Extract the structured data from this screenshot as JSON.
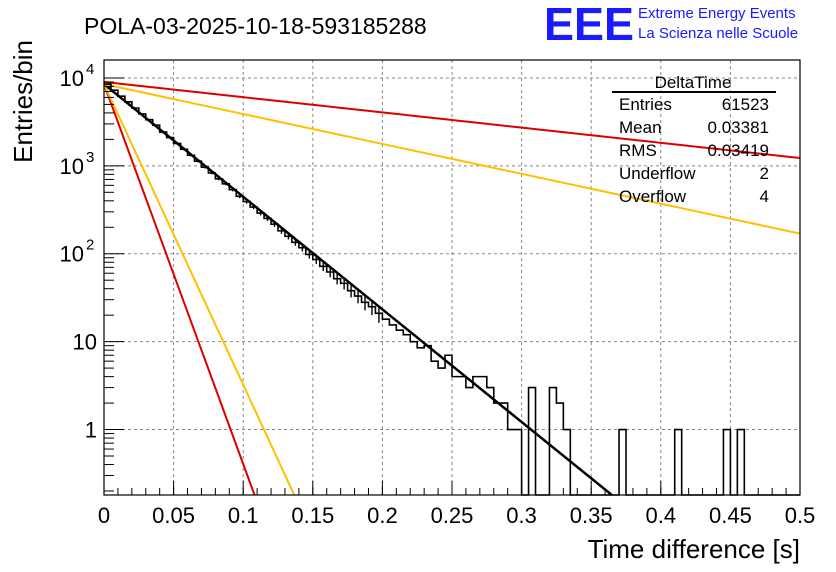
{
  "chart_data": {
    "type": "histogram",
    "title": "POLA-03-2025-10-18-593185288",
    "xlabel": "Time difference [s]",
    "ylabel": "Entries/bin",
    "xlim": [
      0,
      0.5
    ],
    "ylim": [
      0.18,
      16000
    ],
    "yscale": "log",
    "grid": true,
    "x_ticks": [
      {
        "v": 0,
        "label": "0"
      },
      {
        "v": 0.05,
        "label": "0.05"
      },
      {
        "v": 0.1,
        "label": "0.1"
      },
      {
        "v": 0.15,
        "label": "0.15"
      },
      {
        "v": 0.2,
        "label": "0.2"
      },
      {
        "v": 0.25,
        "label": "0.25"
      },
      {
        "v": 0.3,
        "label": "0.3"
      },
      {
        "v": 0.35,
        "label": "0.35"
      },
      {
        "v": 0.4,
        "label": "0.4"
      },
      {
        "v": 0.45,
        "label": "0.45"
      },
      {
        "v": 0.5,
        "label": "0.5"
      }
    ],
    "y_ticks": [
      {
        "v": 1,
        "label": "1"
      },
      {
        "v": 10,
        "label": "10"
      },
      {
        "v": 100,
        "label": "10",
        "sup": "2"
      },
      {
        "v": 1000,
        "label": "10",
        "sup": "3"
      },
      {
        "v": 10000,
        "label": "10",
        "sup": "4"
      }
    ],
    "histogram": {
      "bin_width": 0.005,
      "x_start": 0,
      "counts": [
        8500,
        7250,
        6200,
        5350,
        4550,
        3900,
        3350,
        2900,
        2420,
        2100,
        1800,
        1540,
        1320,
        1130,
        965,
        830,
        712,
        625,
        535,
        450,
        392,
        340,
        290,
        252,
        217,
        182,
        158,
        135,
        117,
        98,
        86,
        72,
        62,
        52,
        46,
        38,
        33,
        28,
        25,
        21,
        18,
        15.5,
        13.5,
        12,
        10,
        8.5,
        9,
        6,
        5,
        7,
        4,
        4,
        3,
        4,
        4,
        3,
        2,
        2,
        1,
        1,
        0,
        3,
        0,
        0,
        3,
        2,
        1,
        0,
        0,
        0,
        0,
        0,
        0,
        0,
        1,
        0,
        0,
        0,
        0,
        0,
        0,
        0,
        1,
        0,
        0,
        0,
        0,
        0,
        0,
        1,
        0,
        1,
        0,
        0,
        0,
        0,
        0,
        0,
        0,
        0
      ]
    },
    "series": [
      {
        "name": "fit",
        "color": "#000000",
        "A": 8500,
        "tau": 0.0339,
        "x_range": [
          0,
          0.3665
        ]
      },
      {
        "name": "red-slow",
        "color": "#dd0000",
        "A": 9000,
        "tau": 0.2509,
        "x_range": [
          0,
          0.5
        ]
      },
      {
        "name": "orange-slow",
        "color": "#ffc000",
        "A": 8500,
        "tau": 0.1277,
        "x_range": [
          0,
          0.5
        ]
      },
      {
        "name": "red-fast",
        "color": "#dd0000",
        "A": 8500,
        "tau": 0.01005,
        "x_range": [
          0,
          0.5
        ]
      },
      {
        "name": "orange-fast",
        "color": "#ffc000",
        "A": 8500,
        "tau": 0.0127,
        "x_range": [
          0,
          0.5
        ]
      }
    ],
    "stats_box": {
      "name": "DeltaTime",
      "rows": [
        {
          "label": "Entries",
          "value": "61523"
        },
        {
          "label": "Mean",
          "value": "0.03381"
        },
        {
          "label": "RMS",
          "value": "0.03419"
        },
        {
          "label": "Underflow",
          "value": "2"
        },
        {
          "label": "Overflow",
          "value": "4"
        }
      ]
    }
  },
  "logo": {
    "text": "EEE",
    "line1": "Extreme Energy Events",
    "line2": "La Scienza nelle Scuole",
    "color": "#1a1aff"
  }
}
